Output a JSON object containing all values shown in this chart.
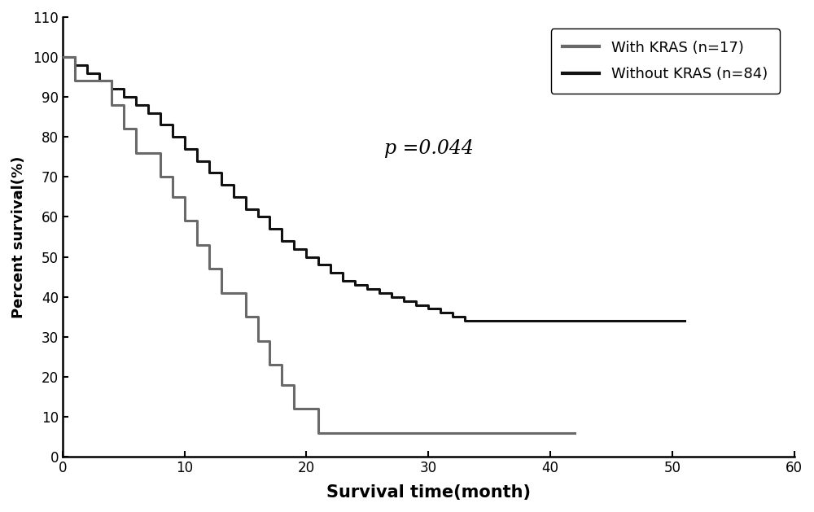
{
  "xlabel": "Survival time(month)",
  "ylabel": "Percent survival(%)",
  "xlim": [
    0,
    60
  ],
  "ylim": [
    0,
    110
  ],
  "xticks": [
    0,
    10,
    20,
    30,
    40,
    50,
    60
  ],
  "yticks": [
    0,
    10,
    20,
    30,
    40,
    50,
    60,
    70,
    80,
    90,
    100,
    110
  ],
  "p_value_text": "p =0.044",
  "legend_labels": [
    "With KRAS (n=17)",
    "Without KRAS (n=84)"
  ],
  "kras_color": "#696969",
  "no_kras_color": "#111111",
  "line_width": 2.2,
  "kras_times": [
    0,
    1,
    2,
    3,
    4,
    5,
    6,
    7,
    8,
    9,
    10,
    11,
    12,
    13,
    14,
    15,
    16,
    17,
    18,
    19,
    20,
    21,
    22,
    23,
    24,
    25,
    42
  ],
  "kras_surv": [
    100,
    94,
    94,
    94,
    88,
    82,
    76,
    76,
    70,
    65,
    59,
    53,
    47,
    41,
    41,
    35,
    29,
    23,
    18,
    12,
    12,
    6,
    6,
    6,
    6,
    6,
    6
  ],
  "no_kras_times": [
    0,
    1,
    2,
    3,
    4,
    5,
    6,
    7,
    8,
    9,
    10,
    11,
    12,
    13,
    14,
    15,
    16,
    17,
    18,
    19,
    20,
    21,
    22,
    23,
    24,
    25,
    26,
    27,
    28,
    29,
    30,
    31,
    32,
    33,
    34,
    35,
    36,
    37,
    38,
    39,
    40,
    41,
    42,
    51
  ],
  "no_kras_surv": [
    100,
    98,
    96,
    94,
    92,
    90,
    88,
    86,
    83,
    80,
    77,
    74,
    71,
    68,
    65,
    62,
    60,
    57,
    54,
    52,
    50,
    48,
    46,
    44,
    43,
    42,
    41,
    40,
    39,
    38,
    37,
    36,
    35,
    34,
    34,
    34,
    34,
    34,
    34,
    34,
    34,
    34,
    34,
    34
  ]
}
